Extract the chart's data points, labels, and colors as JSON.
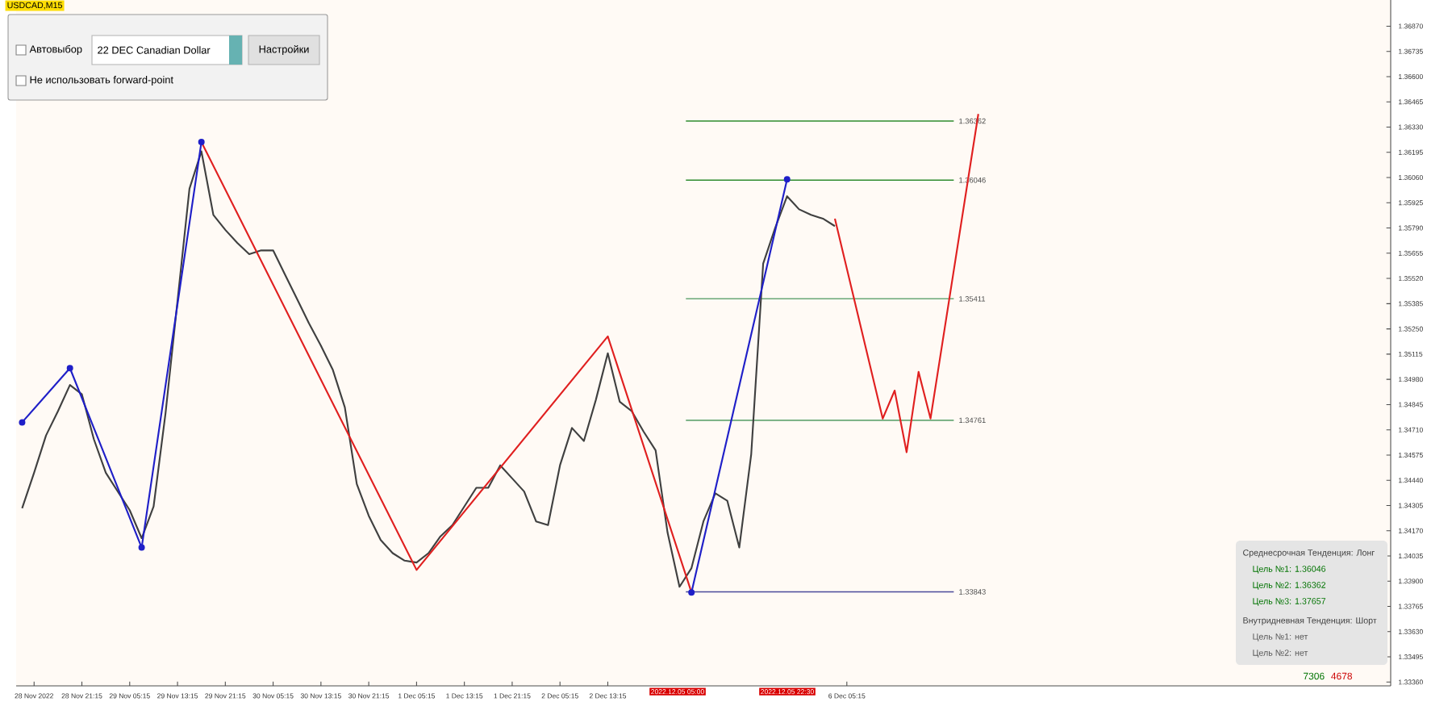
{
  "chart_data": {
    "type": "line",
    "title": "USDCAD,M15",
    "ylim": [
      1.3334,
      1.3701
    ],
    "categories": [
      null,
      "28 Nov 2022",
      null,
      null,
      null,
      "28 Nov 21:15",
      null,
      null,
      null,
      "29 Nov 05:15",
      null,
      null,
      null,
      "29 Nov 13:15",
      null,
      null,
      null,
      "29 Nov 21:15",
      null,
      null,
      null,
      "30 Nov 05:15",
      null,
      null,
      null,
      "30 Nov 13:15",
      null,
      null,
      null,
      "30 Nov 21:15",
      null,
      null,
      null,
      "1 Dec 05:15",
      null,
      null,
      null,
      "1 Dec 13:15",
      null,
      null,
      null,
      "1 Dec 21:15",
      null,
      null,
      null,
      "2 Dec 05:15",
      null,
      null,
      null,
      "2 Dec 13:15",
      null,
      null,
      null,
      null,
      null,
      null,
      null,
      null,
      null,
      null,
      null,
      null,
      null,
      null,
      null,
      null,
      null,
      null,
      null,
      "6 Dec 05:15",
      null,
      null,
      null,
      null,
      null,
      null,
      null,
      null,
      null,
      null,
      null,
      null,
      null,
      null,
      null,
      null,
      null,
      null,
      null,
      null,
      null,
      null,
      null,
      null,
      null,
      null,
      null,
      null,
      null,
      null,
      null,
      null,
      null,
      null,
      null,
      null,
      null,
      null,
      null,
      null,
      null,
      null,
      null,
      null,
      null
    ],
    "yticks": [
      {
        "value": 1.3687,
        "label": "1.36870"
      },
      {
        "value": 1.36735,
        "label": "1.36735"
      },
      {
        "value": 1.366,
        "label": "1.36600"
      },
      {
        "value": 1.36465,
        "label": "1.36465"
      },
      {
        "value": 1.3633,
        "label": "1.36330"
      },
      {
        "value": 1.36195,
        "label": "1.36195"
      },
      {
        "value": 1.3606,
        "label": "1.36060"
      },
      {
        "value": 1.35925,
        "label": "1.35925"
      },
      {
        "value": 1.3579,
        "label": "1.35790"
      },
      {
        "value": 1.35655,
        "label": "1.35655"
      },
      {
        "value": 1.3552,
        "label": "1.35520"
      },
      {
        "value": 1.35385,
        "label": "1.35385"
      },
      {
        "value": 1.3525,
        "label": "1.35250"
      },
      {
        "value": 1.35115,
        "label": "1.35115"
      },
      {
        "value": 1.3498,
        "label": "1.34980"
      },
      {
        "value": 1.34845,
        "label": "1.34845"
      },
      {
        "value": 1.3471,
        "label": "1.34710"
      },
      {
        "value": 1.34575,
        "label": "1.34575"
      },
      {
        "value": 1.3444,
        "label": "1.34440"
      },
      {
        "value": 1.34305,
        "label": "1.34305"
      },
      {
        "value": 1.3417,
        "label": "1.34170"
      },
      {
        "value": 1.34035,
        "label": "1.34035"
      },
      {
        "value": 1.339,
        "label": "1.33900"
      },
      {
        "value": 1.33765,
        "label": "1.33765"
      },
      {
        "value": 1.3363,
        "label": "1.33630"
      },
      {
        "value": 1.33495,
        "label": "1.33495"
      },
      {
        "value": 1.3336,
        "label": "1.33360"
      }
    ],
    "series": [
      {
        "color": "#404040",
        "values": [
          1.3429,
          1.3448,
          1.3468,
          1.3481,
          1.3495,
          1.349,
          1.3466,
          1.3448,
          1.3438,
          1.3428,
          1.3413,
          1.343,
          1.348,
          1.354,
          1.36,
          1.362,
          1.3586,
          1.3578,
          1.3571,
          1.3565,
          1.3567,
          1.3567,
          1.3554,
          1.3541,
          1.3528,
          1.3516,
          1.3503,
          1.3483,
          1.3442,
          1.3425,
          1.3412,
          1.3405,
          1.3401,
          1.34,
          1.3405,
          1.3414,
          1.342,
          1.343,
          1.344,
          1.344,
          1.3452,
          1.3445,
          1.3438,
          1.3422,
          1.342,
          1.3452,
          1.3472,
          1.3465,
          1.3487,
          1.3512,
          1.3486,
          1.3481,
          1.347,
          1.346,
          1.3416,
          1.3387,
          1.3397,
          1.3422,
          1.3437,
          1.3433,
          1.3408,
          1.3458,
          1.356,
          1.3579,
          1.3596,
          1.3589,
          1.3586,
          1.3584,
          1.358,
          null,
          null,
          null,
          null,
          null,
          null,
          null,
          null,
          null,
          null,
          null,
          null,
          null,
          null,
          null,
          null,
          null,
          null,
          null,
          null,
          null,
          null,
          null,
          null,
          null,
          null,
          null,
          null,
          null,
          null,
          null,
          null,
          null,
          null,
          null,
          null,
          null,
          null,
          null,
          null,
          null,
          null,
          null,
          null,
          null,
          null
        ]
      },
      {
        "color": "#1f1fc8",
        "marker": "circle",
        "values": [
          1.3475,
          null,
          null,
          null,
          1.3504,
          null,
          null,
          null,
          null,
          null,
          1.3408,
          null,
          null,
          null,
          null,
          1.3625,
          null,
          null,
          null,
          null,
          null,
          null,
          null,
          null,
          null,
          null,
          null,
          null,
          null,
          null,
          null,
          null,
          null,
          null,
          null,
          null,
          null,
          null,
          null,
          null,
          null,
          null,
          null,
          null,
          null,
          null,
          null,
          null,
          null,
          null,
          null,
          null,
          null,
          null,
          null,
          null,
          null,
          null,
          null,
          null,
          null,
          null,
          null,
          null,
          null,
          null,
          null,
          null,
          null,
          null,
          null,
          null,
          null,
          null,
          null,
          null,
          null,
          null,
          null,
          null,
          null,
          null,
          null,
          null,
          null,
          null,
          null,
          null,
          null,
          null,
          null,
          null,
          null,
          null,
          null,
          null,
          null,
          null,
          null,
          null,
          null,
          null,
          null,
          null,
          null,
          null,
          null,
          null,
          null,
          null,
          null,
          null,
          null,
          null,
          null
        ]
      },
      {
        "color": "#1f1fc8",
        "marker": "circle",
        "values": [
          null,
          null,
          null,
          null,
          null,
          null,
          null,
          null,
          null,
          null,
          null,
          null,
          null,
          null,
          null,
          null,
          null,
          null,
          null,
          null,
          null,
          null,
          null,
          null,
          null,
          null,
          null,
          null,
          null,
          null,
          null,
          null,
          null,
          null,
          null,
          null,
          null,
          null,
          null,
          null,
          null,
          null,
          null,
          null,
          null,
          null,
          null,
          null,
          null,
          null,
          null,
          null,
          null,
          null,
          null,
          null,
          1.3384,
          null,
          null,
          null,
          null,
          null,
          null,
          null,
          1.3605,
          null,
          null,
          null,
          null,
          null,
          null,
          null,
          null,
          null,
          null,
          null,
          null,
          null,
          null,
          null,
          null,
          null,
          null,
          null,
          null,
          null,
          null,
          null,
          null,
          null,
          null,
          null,
          null,
          null,
          null,
          null,
          null,
          null,
          null,
          null,
          null,
          null,
          null,
          null,
          null,
          null,
          null,
          null,
          null,
          null,
          null,
          null,
          null,
          null,
          null
        ]
      },
      {
        "color": "#e02020",
        "values": [
          null,
          null,
          null,
          null,
          null,
          null,
          null,
          null,
          null,
          null,
          null,
          null,
          null,
          null,
          null,
          1.3625,
          null,
          null,
          null,
          null,
          null,
          null,
          null,
          null,
          null,
          null,
          null,
          null,
          null,
          null,
          null,
          null,
          null,
          1.3396,
          null,
          null,
          null,
          null,
          null,
          null,
          null,
          null,
          null,
          null,
          null,
          null,
          null,
          null,
          null,
          1.3521,
          null,
          null,
          null,
          null,
          null,
          null,
          1.3384,
          null,
          null,
          null,
          null,
          null,
          null,
          null,
          null,
          null,
          null,
          null,
          null,
          null,
          null,
          null,
          null,
          null,
          null,
          null,
          null,
          null,
          null,
          null,
          null,
          null,
          null,
          null,
          null,
          null,
          null,
          null,
          null,
          null,
          null,
          null,
          null,
          null,
          null,
          null,
          null,
          null,
          null,
          null,
          null,
          null,
          null,
          null,
          null,
          null,
          null,
          null,
          null,
          null,
          null,
          null,
          null,
          null,
          null
        ]
      },
      {
        "color": "#e02020",
        "values": [
          null,
          null,
          null,
          null,
          null,
          null,
          null,
          null,
          null,
          null,
          null,
          null,
          null,
          null,
          null,
          null,
          null,
          null,
          null,
          null,
          null,
          null,
          null,
          null,
          null,
          null,
          null,
          null,
          null,
          null,
          null,
          null,
          null,
          null,
          null,
          null,
          null,
          null,
          null,
          null,
          null,
          null,
          null,
          null,
          null,
          null,
          null,
          null,
          null,
          null,
          null,
          null,
          null,
          null,
          null,
          null,
          null,
          null,
          null,
          null,
          null,
          null,
          null,
          null,
          null,
          null,
          null,
          null,
          1.3584,
          null,
          null,
          null,
          1.3477,
          1.3492,
          1.3459,
          1.3502,
          1.3477,
          null,
          null,
          null,
          1.364,
          null,
          null,
          null,
          null,
          null,
          null,
          null,
          null,
          null,
          null,
          null,
          null,
          null,
          null,
          null,
          null,
          null,
          null,
          null,
          null,
          null,
          null,
          null,
          null,
          null,
          null,
          null,
          null,
          null,
          null,
          null,
          null,
          null,
          null
        ]
      }
    ],
    "ref_lines": [
      {
        "axis": "y",
        "value": 1.36362,
        "label": "1.36362",
        "color": "#2e8b2e"
      },
      {
        "axis": "y",
        "value": 1.36046,
        "label": "1.36046",
        "color": "#2e8b2e"
      },
      {
        "axis": "y",
        "value": 1.35411,
        "label": "1.35411",
        "color": "#6aa877"
      },
      {
        "axis": "y",
        "value": 1.34761,
        "label": "1.34761",
        "color": "#6aa877"
      },
      {
        "axis": "y",
        "value": 1.33843,
        "label": "1.33843",
        "color": "#4a4a9a"
      }
    ],
    "annotations": [
      "Автовыбор",
      "22 DEC Canadian Dollar",
      "Настройки",
      "Не использовать forward-point",
      "Среднесрочная Тенденция: Лонг",
      "Цель №1: 1.36046",
      "Цель №2: 1.36362",
      "Цель №3: 1.37657",
      "Внутридневная Тенденция: Шорт",
      "Цель №1: нет",
      "Цель №2: нет",
      "7306",
      "4678",
      "2022.12.05 05:00",
      "2022.12.05 22:30"
    ]
  }
}
